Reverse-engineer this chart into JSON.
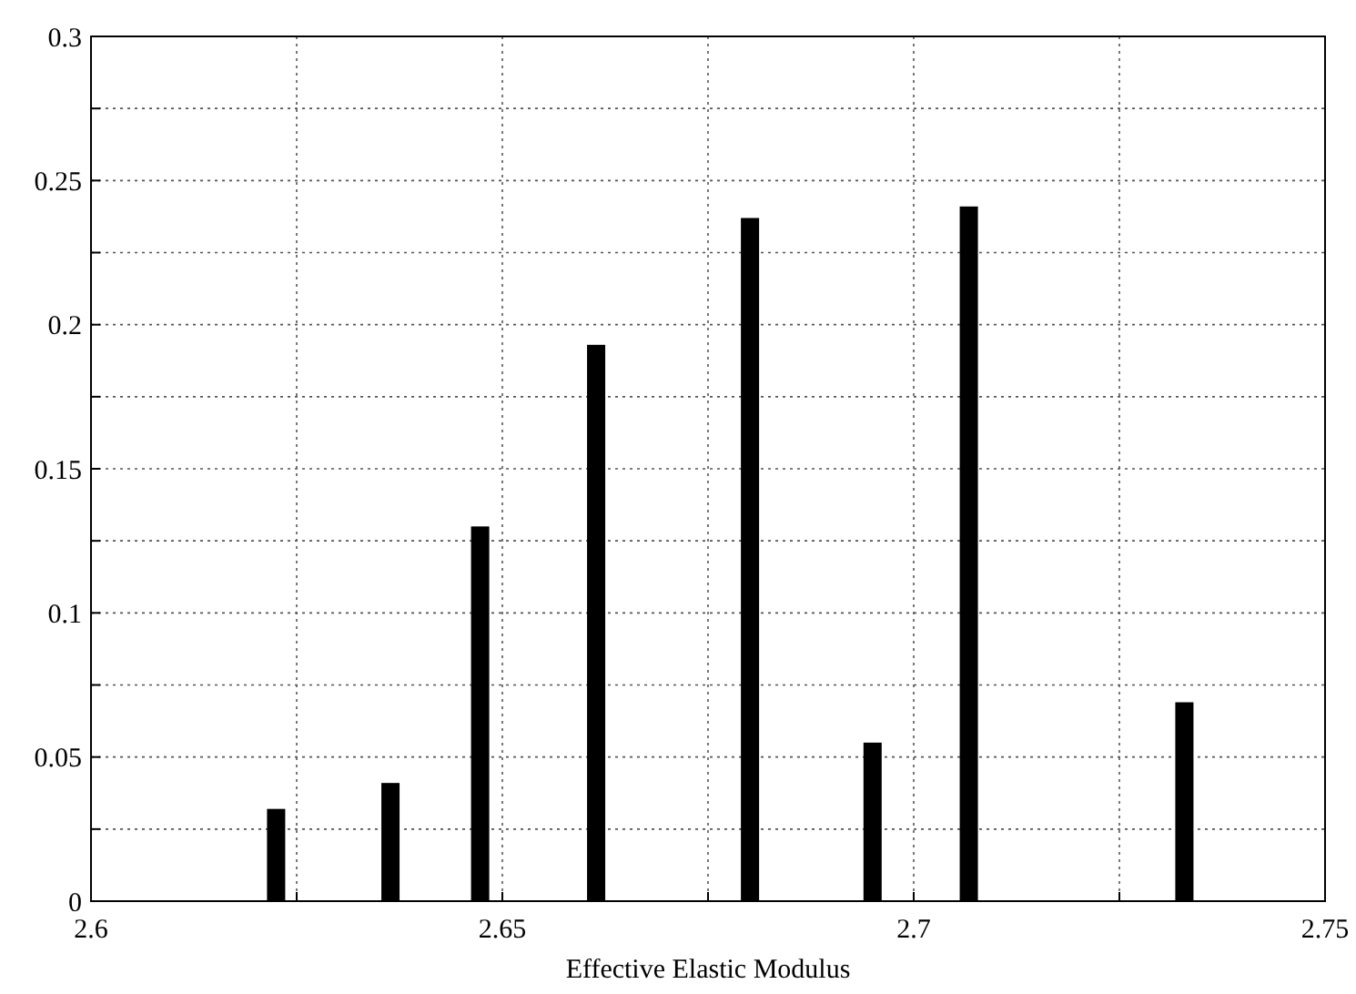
{
  "chart_data": {
    "type": "bar",
    "xlabel": "Effective Elastic Modulus",
    "x": [
      2.6225,
      2.6364,
      2.6473,
      2.6614,
      2.6801,
      2.695,
      2.7067,
      2.7329
    ],
    "values": [
      0.032,
      0.041,
      0.13,
      0.193,
      0.237,
      0.055,
      0.241,
      0.069
    ],
    "color": "#000000",
    "xlim": [
      2.6,
      2.75
    ],
    "xticks": [
      2.6,
      {
        "value": 2.625,
        "label": null
      },
      2.65,
      {
        "value": 2.675,
        "label": null
      },
      2.7,
      {
        "value": 2.725,
        "label": null
      },
      2.75
    ],
    "ylim": [
      0,
      0.3
    ],
    "yticks": [
      0,
      {
        "value": 0.025,
        "label": null
      },
      0.05,
      {
        "value": 0.075,
        "label": null
      },
      0.1,
      {
        "value": 0.125,
        "label": null
      },
      0.15,
      {
        "value": 0.175,
        "label": null
      },
      0.2,
      {
        "value": 0.225,
        "label": null
      },
      0.25,
      {
        "value": 0.275,
        "label": null
      },
      0.3
    ],
    "grid": true
  }
}
